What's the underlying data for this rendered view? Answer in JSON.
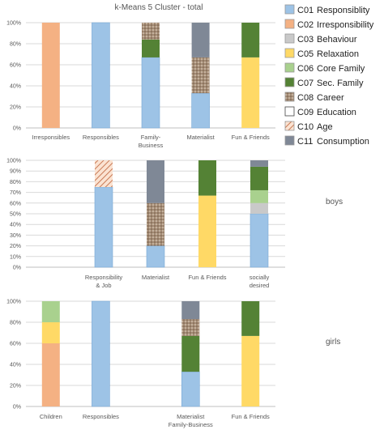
{
  "figure": {
    "title": "k-Means 5 Cluster - total"
  },
  "legend": {
    "placement": "right",
    "items": [
      {
        "key": "C01",
        "code": "C01",
        "label": "Responsiblity",
        "color": "#9dc3e6",
        "pattern": null
      },
      {
        "key": "C02",
        "code": "C02",
        "label": "Irresponsibility",
        "color": "#f4b183",
        "pattern": null
      },
      {
        "key": "C03",
        "code": "C03",
        "label": "Behaviour",
        "color": "#c9c9c9",
        "pattern": null
      },
      {
        "key": "C05",
        "code": "C05",
        "label": "Relaxation",
        "color": "#ffd966",
        "pattern": null
      },
      {
        "key": "C06",
        "code": "C06",
        "label": "Core Family",
        "color": "#a9d18e",
        "pattern": null
      },
      {
        "key": "C07",
        "code": "C07",
        "label": "Sec. Family",
        "color": "#548235",
        "pattern": null
      },
      {
        "key": "C08",
        "code": "C08",
        "label": "Career",
        "color": "#a58c75",
        "pattern": "dots"
      },
      {
        "key": "C09",
        "code": "C09",
        "label": "Education",
        "color": "#ffffff",
        "pattern": null
      },
      {
        "key": "C10",
        "code": "C10",
        "label": "Age",
        "color": "#f8cbad",
        "pattern": "hatch"
      },
      {
        "key": "C11",
        "code": "C11",
        "label": "Consumption",
        "color": "#7f8896",
        "pattern": null
      }
    ]
  },
  "chart_data": [
    {
      "type": "bar",
      "stacked": true,
      "title": "k-Means 5 Cluster - total",
      "side_label": "",
      "ylim": [
        0,
        100
      ],
      "yticks": [
        "0%",
        "20%",
        "40%",
        "60%",
        "80%",
        "100%"
      ],
      "grid": true,
      "categories": [
        "Irresponsibles",
        "Responsibles",
        "Family-\nBusiness",
        "Materialist",
        "Fun & Friends"
      ],
      "series": [
        {
          "name": "C01",
          "values": [
            0,
            100,
            67,
            33,
            0
          ]
        },
        {
          "name": "C02",
          "values": [
            100,
            0,
            0,
            0,
            0
          ]
        },
        {
          "name": "C05",
          "values": [
            0,
            0,
            0,
            0,
            67
          ]
        },
        {
          "name": "C07",
          "values": [
            0,
            0,
            17,
            0,
            33
          ]
        },
        {
          "name": "C08",
          "values": [
            0,
            0,
            16,
            34,
            0
          ]
        },
        {
          "name": "C11",
          "values": [
            0,
            0,
            0,
            33,
            0
          ]
        }
      ]
    },
    {
      "type": "bar",
      "stacked": true,
      "title": "",
      "side_label": "boys",
      "ylim": [
        0,
        100
      ],
      "yticks": [
        "0%",
        "10%",
        "20%",
        "30%",
        "40%",
        "50%",
        "60%",
        "70%",
        "80%",
        "90%",
        "100%"
      ],
      "grid": true,
      "categories": [
        "",
        "Responsibility\n& Job",
        "Materialist",
        "Fun & Friends",
        "socially\ndesired"
      ],
      "series": [
        {
          "name": "C01",
          "values": [
            0,
            75,
            20,
            0,
            50
          ]
        },
        {
          "name": "C03",
          "values": [
            0,
            0,
            0,
            0,
            10
          ]
        },
        {
          "name": "C05",
          "values": [
            0,
            0,
            0,
            67,
            0
          ]
        },
        {
          "name": "C06",
          "values": [
            0,
            0,
            0,
            0,
            12
          ]
        },
        {
          "name": "C07",
          "values": [
            0,
            0,
            0,
            33,
            22
          ]
        },
        {
          "name": "C08",
          "values": [
            0,
            0,
            40,
            0,
            0
          ]
        },
        {
          "name": "C10",
          "values": [
            0,
            25,
            0,
            0,
            0
          ]
        },
        {
          "name": "C11",
          "values": [
            0,
            0,
            40,
            0,
            6
          ]
        }
      ]
    },
    {
      "type": "bar",
      "stacked": true,
      "title": "",
      "side_label": "girls",
      "ylim": [
        0,
        100
      ],
      "yticks": [
        "0%",
        "20%",
        "40%",
        "60%",
        "80%",
        "100%"
      ],
      "grid": true,
      "categories": [
        "Children",
        "Responsibles",
        "Materialist\nFamily-Business",
        "Fun & Friends"
      ],
      "series": [
        {
          "name": "C01",
          "values": [
            0,
            100,
            33,
            0
          ]
        },
        {
          "name": "C02",
          "values": [
            60,
            0,
            0,
            0
          ]
        },
        {
          "name": "C05",
          "values": [
            20,
            0,
            0,
            67
          ]
        },
        {
          "name": "C06",
          "values": [
            20,
            0,
            0,
            0
          ]
        },
        {
          "name": "C07",
          "values": [
            0,
            0,
            34,
            33
          ]
        },
        {
          "name": "C08",
          "values": [
            0,
            0,
            16,
            0
          ]
        },
        {
          "name": "C11",
          "values": [
            0,
            0,
            17,
            0
          ]
        }
      ]
    }
  ]
}
